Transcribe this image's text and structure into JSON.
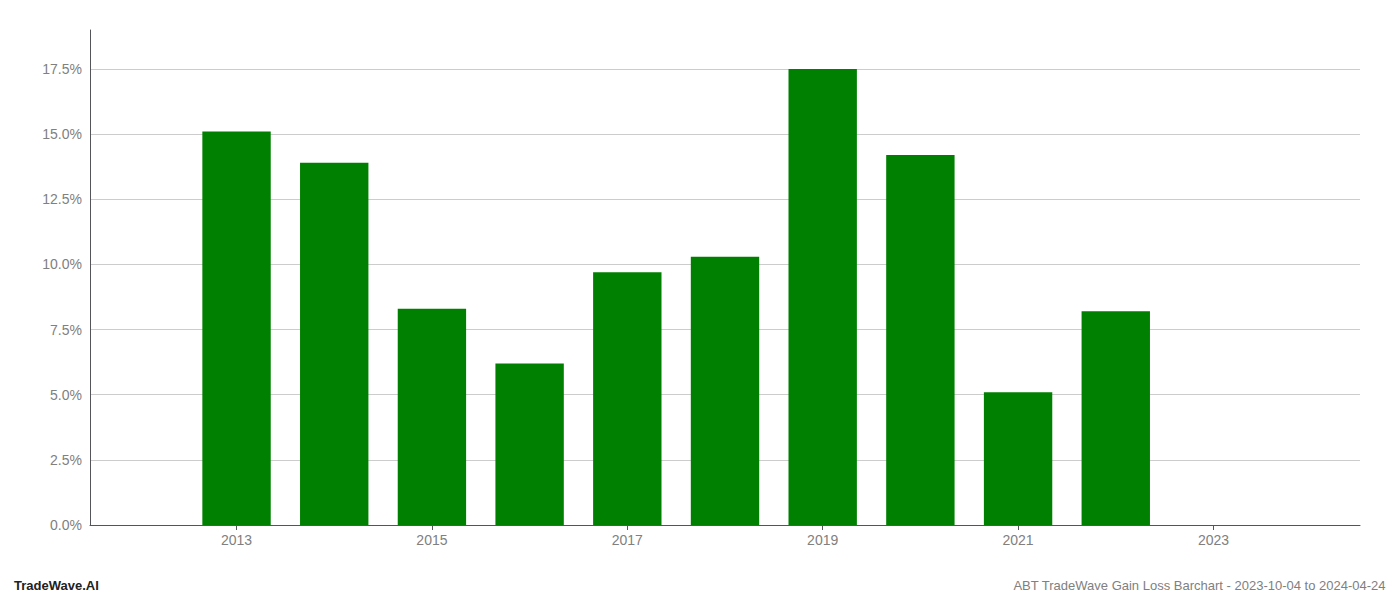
{
  "chart_data": {
    "type": "bar",
    "x": [
      2013,
      2014,
      2015,
      2016,
      2017,
      2018,
      2019,
      2020,
      2021,
      2022
    ],
    "values": [
      0.151,
      0.139,
      0.083,
      0.062,
      0.097,
      0.103,
      0.175,
      0.142,
      0.051,
      0.082
    ],
    "color": "#008000",
    "xlim": [
      2011.5,
      2024.5
    ],
    "xticks": [
      2013,
      2015,
      2017,
      2019,
      2021,
      2023
    ],
    "ylim": [
      0,
      0.19
    ],
    "yticks": [
      {
        "value": 0.0,
        "label": "0.0%"
      },
      {
        "value": 0.025,
        "label": "2.5%"
      },
      {
        "value": 0.05,
        "label": "5.0%"
      },
      {
        "value": 0.075,
        "label": "7.5%"
      },
      {
        "value": 0.1,
        "label": "10.0%"
      },
      {
        "value": 0.125,
        "label": "12.5%"
      },
      {
        "value": 0.15,
        "label": "15.0%"
      },
      {
        "value": 0.175,
        "label": "17.5%"
      }
    ],
    "grid": true,
    "annotations": [
      "TradeWave.AI",
      "ABT TradeWave Gain Loss Barchart - 2023-10-04 to 2024-04-24"
    ]
  }
}
